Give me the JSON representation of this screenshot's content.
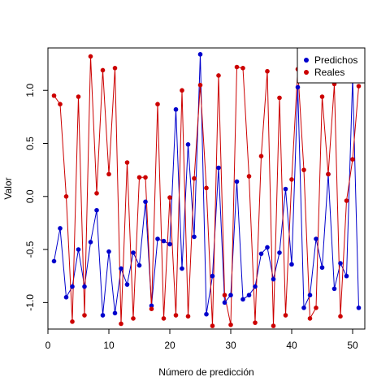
{
  "chart_data": {
    "type": "line",
    "title": "",
    "xlabel": "Número de predicción",
    "ylabel": "Valor",
    "xlim": [
      0,
      52
    ],
    "ylim": [
      -1.25,
      1.4
    ],
    "xticks": [
      0,
      10,
      20,
      30,
      40,
      50
    ],
    "xtick_labels": [
      "0",
      "10",
      "20",
      "30",
      "40",
      "50"
    ],
    "yticks": [
      -1.0,
      -0.5,
      0.0,
      0.5,
      1.0
    ],
    "ytick_labels": [
      "-1.0",
      "-0.5",
      "0.0",
      "0.5",
      "1.0"
    ],
    "grid": false,
    "legend_position": "top-right",
    "x": [
      1,
      2,
      3,
      4,
      5,
      6,
      7,
      8,
      9,
      10,
      11,
      12,
      13,
      14,
      15,
      16,
      17,
      18,
      19,
      20,
      21,
      22,
      23,
      24,
      25,
      26,
      27,
      28,
      29,
      30,
      31,
      32,
      33,
      34,
      35,
      36,
      37,
      38,
      39,
      40,
      41,
      42,
      43,
      44,
      45,
      46,
      47,
      48,
      49,
      50,
      51
    ],
    "series": [
      {
        "name": "Predichos",
        "color": "#0000cc",
        "values": [
          -0.61,
          -0.3,
          -0.95,
          -0.85,
          -0.5,
          -0.85,
          -0.43,
          -0.13,
          -1.12,
          -0.52,
          -1.1,
          -0.68,
          -0.83,
          -0.53,
          -0.65,
          -0.05,
          -1.03,
          -0.4,
          -0.42,
          -0.45,
          0.82,
          -0.68,
          0.49,
          -0.38,
          1.34,
          -1.11,
          -0.75,
          0.27,
          -1.0,
          -0.93,
          0.14,
          -0.97,
          -0.93,
          -0.85,
          -0.54,
          -0.48,
          -0.78,
          -0.53,
          0.07,
          -0.64,
          1.03,
          -1.05,
          -0.93,
          -0.4,
          -0.67,
          0.21,
          -0.87,
          -0.63,
          -0.75,
          1.12,
          -1.05
        ]
      },
      {
        "name": "Reales",
        "color": "#cc0000",
        "values": [
          0.95,
          0.87,
          0.0,
          -1.18,
          0.94,
          -1.12,
          1.32,
          0.03,
          1.19,
          0.21,
          1.21,
          -1.2,
          0.32,
          -1.15,
          0.18,
          0.18,
          -1.06,
          0.87,
          -1.15,
          -0.01,
          -1.12,
          1.0,
          -1.13,
          0.17,
          1.05,
          0.08,
          -1.22,
          1.14,
          -0.93,
          -1.21,
          1.22,
          1.21,
          0.19,
          -1.19,
          0.38,
          1.18,
          -1.22,
          0.93,
          -1.12,
          0.16,
          1.2,
          0.25,
          -1.15,
          -1.05,
          0.94,
          0.21,
          1.06,
          -1.13,
          -0.04,
          0.35,
          1.04
        ]
      }
    ]
  }
}
